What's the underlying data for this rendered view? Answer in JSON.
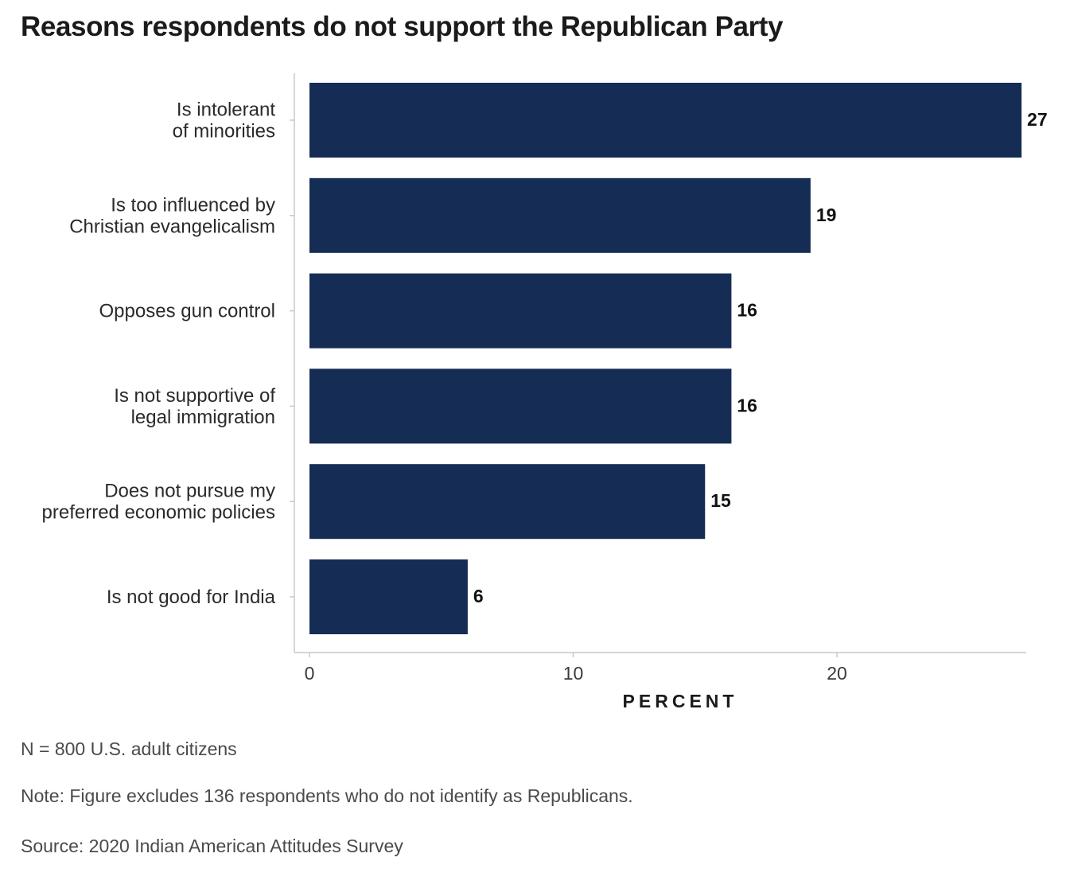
{
  "title": "Reasons respondents do not support the Republican Party",
  "colors": {
    "bar": "#152c54",
    "axis": "#c8c8c8",
    "text": "#2a2a2a"
  },
  "chart_data": {
    "type": "bar",
    "orientation": "horizontal",
    "title": "Reasons respondents do not support the Republican Party",
    "categories": [
      [
        "Is intolerant",
        "of minorities"
      ],
      [
        "Is too influenced by",
        "Christian evangelicalism"
      ],
      [
        "Opposes gun control"
      ],
      [
        "Is not supportive of",
        "legal immigration"
      ],
      [
        "Does not pursue my",
        "preferred economic policies"
      ],
      [
        "Is not good for India"
      ]
    ],
    "values": [
      27,
      19,
      16,
      16,
      15,
      6
    ],
    "xlabel": "PERCENT",
    "ylabel": "",
    "xticks": [
      0,
      10,
      20
    ],
    "xlim": [
      0,
      27
    ],
    "grid": false,
    "legend": "none"
  },
  "footnotes": {
    "n": "N = 800 U.S. adult citizens",
    "note": "Note: Figure excludes 136 respondents who do not identify as Republicans.",
    "source": "Source: 2020 Indian American Attitudes Survey"
  }
}
